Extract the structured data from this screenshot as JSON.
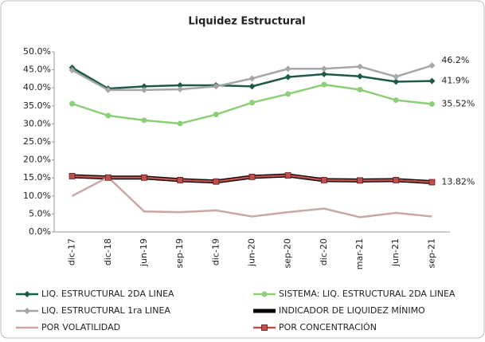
{
  "chart_data": {
    "type": "line",
    "title": "Liquidez Estructural",
    "categories": [
      "dic-17",
      "dic-18",
      "jun-19",
      "sep-19",
      "dic-19",
      "jun-20",
      "sep-20",
      "dic-20",
      "mar-21",
      "jun-21",
      "sep-21"
    ],
    "ylim": [
      0,
      50
    ],
    "yticks": [
      {
        "value": 0,
        "label": "0.0%"
      },
      {
        "value": 5,
        "label": "5.0%"
      },
      {
        "value": 10,
        "label": "10.0%"
      },
      {
        "value": 15,
        "label": "15.0%"
      },
      {
        "value": 20,
        "label": "20.0%"
      },
      {
        "value": 25,
        "label": "25.0%"
      },
      {
        "value": 30,
        "label": "30.0%"
      },
      {
        "value": 35,
        "label": "35.0%"
      },
      {
        "value": 40,
        "label": "40.0%"
      },
      {
        "value": 45,
        "label": "45.0%"
      },
      {
        "value": 50,
        "label": "50.0%"
      }
    ],
    "grid": false,
    "series": [
      {
        "name": "LIQ. ESTRUCTURAL 2DA LINEA",
        "color": "#1d5b45",
        "marker": "diamond",
        "values": [
          45.6,
          39.8,
          40.4,
          40.7,
          40.7,
          40.4,
          43.0,
          43.8,
          43.2,
          41.7,
          41.9
        ],
        "value_labels": [
          null,
          null,
          null,
          null,
          null,
          null,
          null,
          null,
          null,
          null,
          "41.9%"
        ]
      },
      {
        "name": "SISTEMA: LIQ. ESTRUCTURAL 2DA LINEA",
        "color": "#8ccf78",
        "marker": "circle",
        "values": [
          35.6,
          32.3,
          31.0,
          30.1,
          32.6,
          35.9,
          38.3,
          40.9,
          39.5,
          36.6,
          35.52
        ],
        "value_labels": [
          null,
          null,
          null,
          null,
          null,
          null,
          null,
          null,
          null,
          null,
          "35.52%"
        ]
      },
      {
        "name": "LIQ. ESTRUCTURAL 1ra LINEA",
        "color": "#a6a6a6",
        "marker": "diamond",
        "values": [
          44.9,
          39.4,
          39.4,
          39.6,
          40.4,
          42.6,
          45.3,
          45.3,
          45.9,
          43.1,
          46.2
        ],
        "value_labels": [
          null,
          null,
          null,
          null,
          null,
          null,
          null,
          null,
          null,
          null,
          "46.2%"
        ]
      },
      {
        "name": "INDICADOR DE LIQUIDEZ MÍNIMO",
        "color": "#000000",
        "marker": "none",
        "width": 5,
        "values": [
          15.5,
          15.1,
          15.1,
          14.4,
          14.0,
          15.3,
          15.7,
          14.4,
          14.3,
          14.4,
          13.82
        ],
        "value_labels": [
          null,
          null,
          null,
          null,
          null,
          null,
          null,
          null,
          null,
          null,
          "13.82%"
        ]
      },
      {
        "name": "POR VOLATILIDAD",
        "color": "#c9a7a2",
        "marker": "none",
        "values": [
          10.0,
          15.2,
          5.7,
          5.5,
          6.0,
          4.3,
          5.5,
          6.5,
          4.1,
          5.3,
          4.3
        ]
      },
      {
        "name": "POR CONCENTRACIÓN",
        "color": "#c0504d",
        "marker": "square",
        "values": [
          15.5,
          15.1,
          15.1,
          14.4,
          14.0,
          15.3,
          15.7,
          14.4,
          14.3,
          14.4,
          13.82
        ]
      }
    ]
  }
}
